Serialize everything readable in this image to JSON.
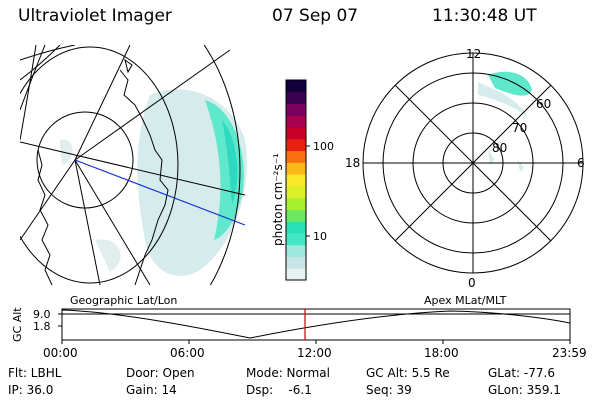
{
  "header": {
    "title": "Ultraviolet Imager",
    "date": "07 Sep 07",
    "time": "11:30:48 UT"
  },
  "colorbar": {
    "unit_label": "photon cm⁻²s⁻¹",
    "ticks": [
      "100",
      "10"
    ],
    "colors": [
      "#e8f2f2",
      "#c8e6e6",
      "#9fe6dc",
      "#45e6c8",
      "#28e0b8",
      "#6ee860",
      "#a8f030",
      "#dcf028",
      "#f8e828",
      "#f8b818",
      "#f87010",
      "#e82010",
      "#c80028",
      "#a8004c",
      "#7a0060",
      "#3c0050",
      "#10003c"
    ]
  },
  "left_map": {
    "caption": "Geographic Lat/Lon"
  },
  "polar_plot": {
    "caption": "Apex MLat/MLT",
    "mlt_labels": [
      "12",
      "18",
      "6",
      "0"
    ],
    "mlat_labels": [
      "60",
      "70",
      "80"
    ]
  },
  "altitude_plot": {
    "axis_label": "GC Alt",
    "ytick_labels": [
      "9.0",
      "1.8"
    ],
    "xtick_labels": [
      "00:00",
      "06:00",
      "12:00",
      "18:00",
      "23:59"
    ]
  },
  "status": {
    "filter": "Flt: LBHL",
    "ip": "IP: 36.0",
    "door": "Door: Open",
    "gain": "Gain: 14",
    "mode": "Mode: Normal",
    "dsp": "Dsp:    -6.1",
    "gc_alt": "GC Alt: 5.5 Re",
    "seq": "Seq: 39",
    "glat": "GLat: -77.6",
    "glon": "GLon: 359.1"
  }
}
